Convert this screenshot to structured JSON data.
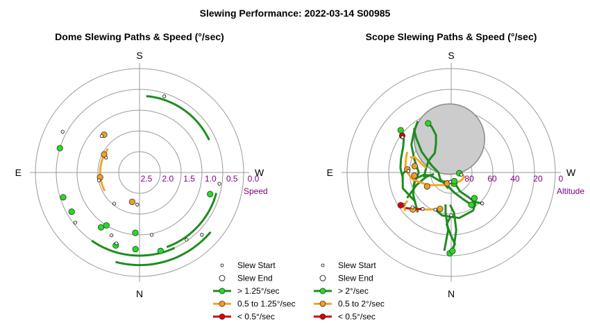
{
  "figure_title": "Slewing Performance: 2022-03-14 S00985",
  "colors": {
    "fast": "#1e8c1e",
    "fast_fill": "#22dd22",
    "medium": "#f5a623",
    "medium_fill": "#f0a020",
    "slow": "#dd0000",
    "slow_fill": "#dd0000",
    "ring_label": "#800080",
    "grid": "#999999"
  },
  "chart_data": [
    {
      "type": "polar-scatter",
      "title": "Dome Slewing Paths & Speed (°/sec)",
      "radial_axis_label": "Speed",
      "radial_ticks": [
        "2.5",
        "2.0",
        "1.5",
        "1.0",
        "0.5",
        "0.0"
      ],
      "rlim": [
        2.75,
        0.0
      ],
      "compass": {
        "top": "S",
        "bottom": "N",
        "left": "E",
        "right": "W"
      },
      "legend": [
        {
          "marker": "start",
          "label": "Slew Start"
        },
        {
          "marker": "end",
          "label": "Slew End"
        },
        {
          "marker": "fast",
          "label": "> 1.25°/sec"
        },
        {
          "marker": "medium",
          "label": "0.5 to 1.25°/sec"
        },
        {
          "marker": "slow",
          "label": "< 0.5°/sec"
        }
      ],
      "arcs": [
        {
          "speed_class": "medium",
          "az_start": 118,
          "az_end": 53,
          "r": 1.71
        },
        {
          "speed_class": "fast",
          "az_start": 145,
          "az_end": 205,
          "r": 0.55
        },
        {
          "speed_class": "fast",
          "az_start": 165,
          "az_end": 230,
          "r": 0.3
        },
        {
          "speed_class": "fast",
          "az_start": 200,
          "az_end": 255,
          "r": 0.65
        },
        {
          "speed_class": "fast",
          "az_start": 295,
          "az_end": 355,
          "r": 0.72
        }
      ],
      "points": [
        {
          "az": 166,
          "r": 1.95,
          "kind": "end",
          "speed_class": "medium"
        },
        {
          "az": 176,
          "r": 1.9,
          "kind": "start",
          "speed_class": "medium"
        },
        {
          "az": 141,
          "r": 1.69,
          "kind": "start",
          "speed_class": "medium"
        },
        {
          "az": 176,
          "r": 1.15,
          "kind": "end",
          "speed_class": "fast"
        },
        {
          "az": 191,
          "r": 1.07,
          "kind": "start",
          "speed_class": "fast"
        },
        {
          "az": 145,
          "r": 0.98,
          "kind": "end",
          "speed_class": "fast"
        },
        {
          "az": 148,
          "r": 1.1,
          "kind": "end",
          "speed_class": "fast"
        },
        {
          "az": 156,
          "r": 0.93,
          "kind": "start",
          "speed_class": "fast"
        },
        {
          "az": 162,
          "r": 0.72,
          "kind": "end",
          "speed_class": "fast"
        },
        {
          "az": 162,
          "r": 0.78,
          "kind": "start",
          "speed_class": "fast"
        },
        {
          "az": 177,
          "r": 0.72,
          "kind": "end",
          "speed_class": "fast"
        },
        {
          "az": 195,
          "r": 0.6,
          "kind": "end",
          "speed_class": "fast"
        },
        {
          "az": 225,
          "r": 0.42,
          "kind": "start",
          "speed_class": "fast"
        },
        {
          "az": 215,
          "r": 0.58,
          "kind": "start",
          "speed_class": "fast"
        },
        {
          "az": 120,
          "r": 0.68,
          "kind": "end",
          "speed_class": "fast"
        },
        {
          "az": 128,
          "r": 0.6,
          "kind": "start",
          "speed_class": "fast"
        },
        {
          "az": 108,
          "r": 0.63,
          "kind": "end",
          "speed_class": "fast"
        },
        {
          "az": 73,
          "r": 0.55,
          "kind": "end",
          "speed_class": "fast"
        },
        {
          "az": 62,
          "r": 0.45,
          "kind": "start",
          "speed_class": "fast"
        },
        {
          "az": 253,
          "r": 0.8,
          "kind": "end",
          "speed_class": "fast"
        },
        {
          "az": 262,
          "r": 0.62,
          "kind": "start",
          "speed_class": "fast"
        },
        {
          "az": 342,
          "r": 0.63,
          "kind": "start",
          "speed_class": "fast"
        },
        {
          "az": 97,
          "r": 1.7,
          "kind": "end",
          "speed_class": "medium"
        },
        {
          "az": 101,
          "r": 1.66,
          "kind": "start",
          "speed_class": "medium"
        },
        {
          "az": 66,
          "r": 1.78,
          "kind": "start",
          "speed_class": "medium"
        },
        {
          "az": 63,
          "r": 1.7,
          "kind": "end",
          "speed_class": "medium"
        },
        {
          "az": 43,
          "r": 1.38,
          "kind": "end",
          "speed_class": "medium"
        },
        {
          "az": 46,
          "r": 1.36,
          "kind": "start",
          "speed_class": "medium"
        }
      ]
    },
    {
      "type": "polar-scatter",
      "title": "Scope Slewing Paths & Speed (°/sec)",
      "radial_axis_label": "Altitude",
      "radial_ticks": [
        "80",
        "60",
        "40",
        "20",
        "0"
      ],
      "rlim": [
        90,
        0
      ],
      "compass": {
        "top": "S",
        "bottom": "N",
        "left": "E",
        "right": "W"
      },
      "legend": [
        {
          "marker": "start",
          "label": "Slew Start"
        },
        {
          "marker": "end",
          "label": "Slew End"
        },
        {
          "marker": "fast",
          "label": "> 2°/sec"
        },
        {
          "marker": "medium",
          "label": "0.5 to 2°/sec"
        },
        {
          "marker": "slow",
          "label": "< 0.5°/sec"
        }
      ],
      "shaded_region": {
        "az": 3,
        "alt": 61,
        "radius_deg": 14.5
      },
      "paths": [
        {
          "speed_class": "fast",
          "pts": [
            [
              180,
              53
            ],
            [
              175,
              45
            ],
            [
              180,
              35
            ],
            [
              183,
              28
            ],
            [
              179,
              20
            ]
          ]
        },
        {
          "speed_class": "fast",
          "pts": [
            [
              182,
              25
            ],
            [
              185,
              40
            ],
            [
              184,
              55
            ],
            [
              178,
              62
            ]
          ]
        },
        {
          "speed_class": "fast",
          "pts": [
            [
              175,
              22
            ],
            [
              177,
              40
            ],
            [
              172,
              55
            ],
            [
              170,
              62
            ]
          ]
        },
        {
          "speed_class": "fast",
          "pts": [
            [
              157,
              55
            ],
            [
              168,
              52
            ],
            [
              190,
              50
            ],
            [
              210,
              52
            ],
            [
              218,
              56
            ],
            [
              222,
              60
            ]
          ]
        },
        {
          "speed_class": "fast",
          "pts": [
            [
              225,
              52
            ],
            [
              218,
              58
            ],
            [
              215,
              64
            ],
            [
              205,
              72
            ],
            [
              195,
              82
            ]
          ]
        },
        {
          "speed_class": "fast",
          "pts": [
            [
              212,
              57
            ],
            [
              205,
              64
            ],
            [
              190,
              72
            ],
            [
              172,
              77
            ],
            [
              160,
              80
            ]
          ]
        },
        {
          "speed_class": "fast",
          "pts": [
            [
              140,
              45
            ],
            [
              120,
              52
            ],
            [
              100,
              58
            ],
            [
              95,
              66
            ],
            [
              98,
              72
            ],
            [
              130,
              78
            ],
            [
              175,
              82
            ]
          ]
        },
        {
          "speed_class": "fast",
          "pts": [
            [
              130,
              50
            ],
            [
              108,
              46
            ],
            [
              92,
              48
            ],
            [
              85,
              52
            ]
          ]
        },
        {
          "speed_class": "fast",
          "pts": [
            [
              120,
              46
            ],
            [
              110,
              58
            ],
            [
              100,
              68
            ],
            [
              95,
              75
            ]
          ]
        },
        {
          "speed_class": "fast",
          "pts": [
            [
              110,
              55
            ],
            [
              90,
              62
            ],
            [
              70,
              56
            ],
            [
              55,
              48
            ],
            [
              42,
              42
            ],
            [
              33,
              37
            ]
          ]
        },
        {
          "speed_class": "fast",
          "pts": [
            [
              98,
              48
            ],
            [
              85,
              46
            ],
            [
              75,
              45
            ],
            [
              62,
              43
            ],
            [
              55,
              40
            ],
            [
              53,
              37
            ]
          ]
        },
        {
          "speed_class": "fast",
          "pts": [
            [
              100,
              66
            ],
            [
              80,
              68
            ],
            [
              62,
              68
            ],
            [
              40,
              68
            ],
            [
              28,
              62
            ],
            [
              22,
              55
            ],
            [
              23,
              47
            ],
            [
              25,
              43
            ]
          ]
        },
        {
          "speed_class": "fast",
          "pts": [
            [
              170,
              76
            ],
            [
              120,
              79
            ],
            [
              90,
              79
            ],
            [
              70,
              72
            ],
            [
              55,
              59
            ],
            [
              45,
              47
            ],
            [
              40,
              40
            ]
          ]
        },
        {
          "speed_class": "medium",
          "pts": [
            [
              163,
              57
            ],
            [
              150,
              53
            ],
            [
              138,
              47
            ],
            [
              128,
              40
            ]
          ]
        },
        {
          "speed_class": "medium",
          "pts": [
            [
              130,
              38
            ],
            [
              125,
              40
            ],
            [
              123,
              45
            ]
          ]
        },
        {
          "speed_class": "medium",
          "pts": [
            [
              155,
              78
            ],
            [
              120,
              68
            ],
            [
              108,
              62
            ],
            [
              100,
              56
            ],
            [
              90,
              52
            ],
            [
              82,
              50
            ],
            [
              72,
              49
            ],
            [
              65,
              48
            ]
          ]
        },
        {
          "speed_class": "medium",
          "pts": [
            [
              195,
              80
            ],
            [
              230,
              79
            ],
            [
              250,
              78
            ],
            [
              260,
              80
            ],
            [
              265,
              83
            ]
          ]
        },
        {
          "speed_class": "medium",
          "pts": [
            [
              80,
              68
            ],
            [
              72,
              62
            ],
            [
              67,
              56
            ],
            [
              70,
              52
            ]
          ]
        },
        {
          "speed_class": "slow",
          "pts": [
            [
              128,
              40
            ],
            [
              135,
              45
            ],
            [
              142,
              50
            ]
          ]
        }
      ],
      "points": [
        {
          "az": 180,
          "alt": 53,
          "kind": "start",
          "speed_class": "fast"
        },
        {
          "az": 179,
          "alt": 20,
          "kind": "end",
          "speed_class": "fast"
        },
        {
          "az": 181,
          "alt": 22,
          "kind": "end",
          "speed_class": "fast"
        },
        {
          "az": 163,
          "alt": 57,
          "kind": "end",
          "speed_class": "medium"
        },
        {
          "az": 157,
          "alt": 55,
          "kind": "start",
          "speed_class": "fast"
        },
        {
          "az": 222,
          "alt": 60,
          "kind": "end",
          "speed_class": "fast"
        },
        {
          "az": 225,
          "alt": 52,
          "kind": "start",
          "speed_class": "fast"
        },
        {
          "az": 212,
          "alt": 57,
          "kind": "end",
          "speed_class": "fast"
        },
        {
          "az": 134,
          "alt": 44,
          "kind": "end",
          "speed_class": "medium"
        },
        {
          "az": 132,
          "alt": 45,
          "kind": "start",
          "speed_class": "medium"
        },
        {
          "az": 124,
          "alt": 40,
          "kind": "start",
          "speed_class": "medium"
        },
        {
          "az": 123,
          "alt": 38,
          "kind": "end",
          "speed_class": "slow"
        },
        {
          "az": 142,
          "alt": 50,
          "kind": "start",
          "speed_class": "slow"
        },
        {
          "az": 195,
          "alt": 80,
          "kind": "end",
          "speed_class": "fast"
        },
        {
          "az": 160,
          "alt": 80,
          "kind": "end",
          "speed_class": "medium"
        },
        {
          "az": 175,
          "alt": 82,
          "kind": "start",
          "speed_class": "fast"
        },
        {
          "az": 200,
          "alt": 82,
          "kind": "end",
          "speed_class": "fast"
        },
        {
          "az": 265,
          "alt": 83,
          "kind": "end",
          "speed_class": "fast"
        },
        {
          "az": 258,
          "alt": 81,
          "kind": "start",
          "speed_class": "fast"
        },
        {
          "az": 120,
          "alt": 66,
          "kind": "end",
          "speed_class": "medium"
        },
        {
          "az": 95,
          "alt": 58,
          "kind": "end",
          "speed_class": "medium"
        },
        {
          "az": 86,
          "alt": 52,
          "kind": "end",
          "speed_class": "medium"
        },
        {
          "az": 88,
          "alt": 53,
          "kind": "start",
          "speed_class": "medium"
        },
        {
          "az": 80,
          "alt": 58,
          "kind": "end",
          "speed_class": "medium"
        },
        {
          "az": 53,
          "alt": 37,
          "kind": "end",
          "speed_class": "slow"
        },
        {
          "az": 54,
          "alt": 38,
          "kind": "start",
          "speed_class": "slow"
        },
        {
          "az": 50,
          "alt": 33,
          "kind": "end",
          "speed_class": "fast"
        },
        {
          "az": 25,
          "alt": 43,
          "kind": "end",
          "speed_class": "fast"
        }
      ]
    }
  ]
}
